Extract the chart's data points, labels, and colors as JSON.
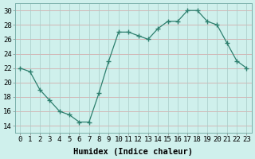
{
  "x": [
    0,
    1,
    2,
    3,
    4,
    5,
    6,
    7,
    8,
    9,
    10,
    11,
    12,
    13,
    14,
    15,
    16,
    17,
    18,
    19,
    20,
    21,
    22,
    23
  ],
  "y": [
    22,
    21.5,
    19,
    17.5,
    16,
    15.5,
    14.5,
    14.5,
    18.5,
    23,
    27,
    27,
    26.5,
    26,
    27.5,
    28.5,
    28.5,
    30,
    30,
    28.5,
    28,
    25.5,
    23,
    22
  ],
  "line_color": "#2d7f6e",
  "marker": "D",
  "marker_size": 2.2,
  "bg_color": "#cff0ec",
  "grid_color_v": "#b8dcd8",
  "grid_color_h": "#e8b8b8",
  "xlabel": "Humidex (Indice chaleur)",
  "xlim": [
    -0.5,
    23.5
  ],
  "ylim": [
    13,
    31
  ],
  "yticks": [
    14,
    16,
    18,
    20,
    22,
    24,
    26,
    28,
    30
  ],
  "xticks": [
    0,
    1,
    2,
    3,
    4,
    5,
    6,
    7,
    8,
    9,
    10,
    11,
    12,
    13,
    14,
    15,
    16,
    17,
    18,
    19,
    20,
    21,
    22,
    23
  ],
  "xtick_labels": [
    "0",
    "1",
    "2",
    "3",
    "4",
    "5",
    "6",
    "7",
    "8",
    "9",
    "10",
    "11",
    "12",
    "13",
    "14",
    "15",
    "16",
    "17",
    "18",
    "19",
    "20",
    "21",
    "22",
    "23"
  ],
  "tick_fontsize": 6.5,
  "xlabel_fontsize": 7.5
}
